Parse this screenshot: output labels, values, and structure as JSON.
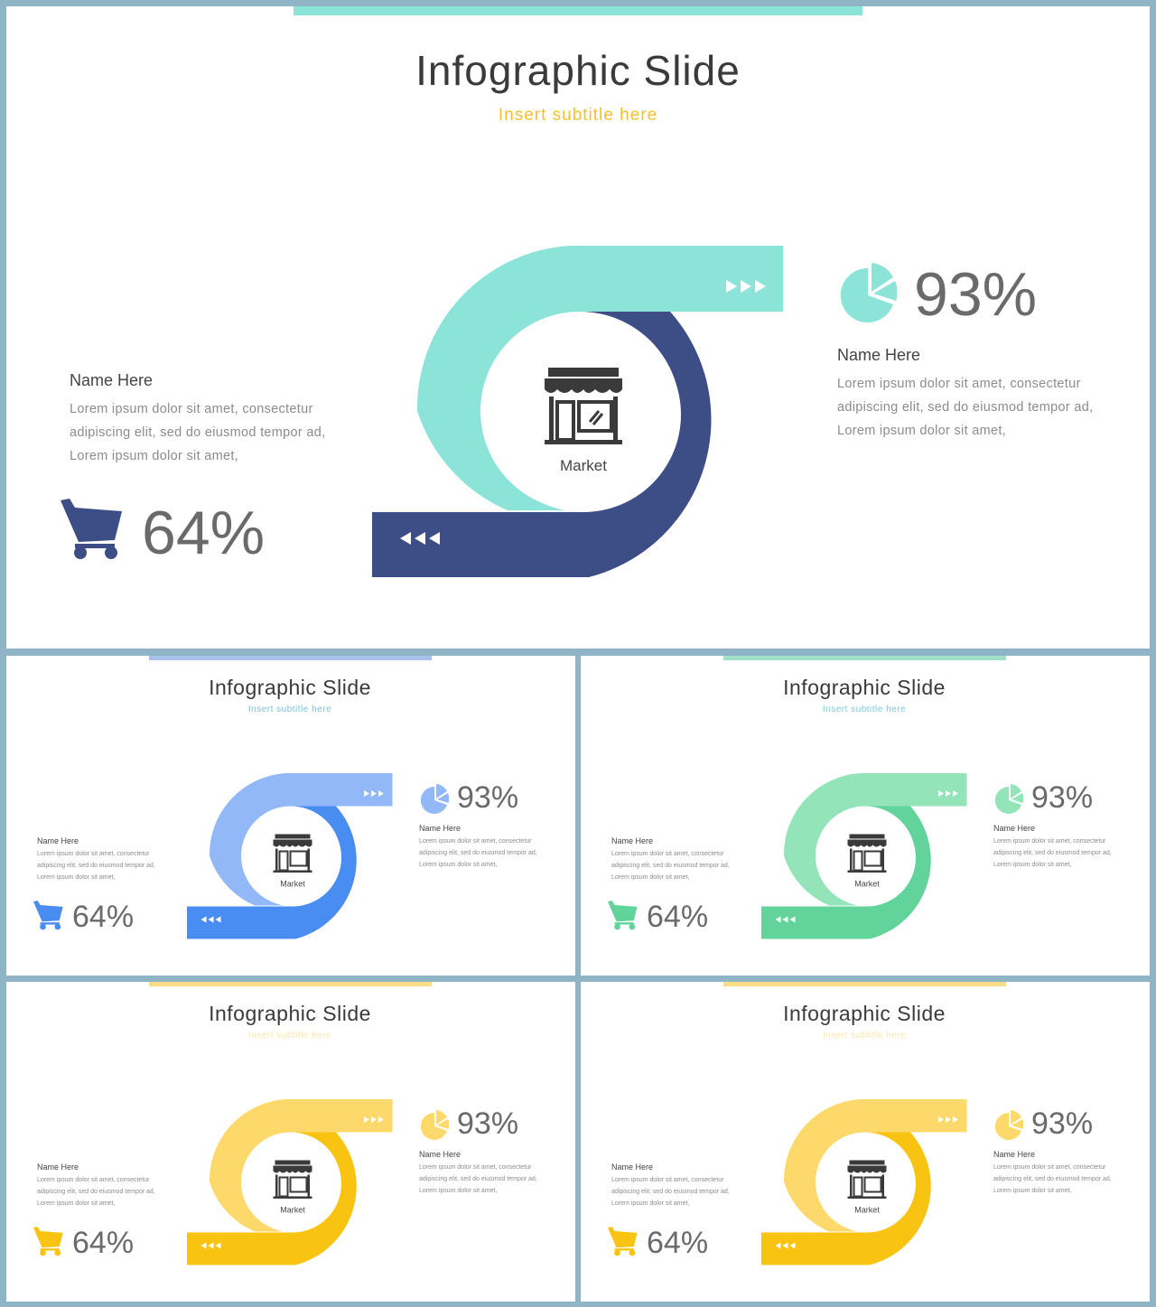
{
  "main": {
    "title": "Infographic Slide",
    "subtitle": "Insert  subtitle  here",
    "left_name": "Name  Here",
    "left_desc": "Lorem  ipsum  dolor  sit amet,  consectetur adipiscing  elit,  sed do eiusmod  tempor ad,  Lorem  ipsum  dolor  sit amet,",
    "left_percent": "64%",
    "right_name": "Name  Here",
    "right_desc": "Lorem  ipsum  dolor  sit amet,  consectetur adipiscing  elit,  sed do eiusmod  tempor ad,  Lorem  ipsum  dolor  sit amet,",
    "right_percent": "93%",
    "center_label": "Market",
    "colors": {
      "light": "#8ce4d9",
      "dark": "#3d4d85",
      "bar": "#8ce4d9",
      "subtitle": "#f3c12d"
    }
  },
  "thumbnails": [
    {
      "title": "Infographic Slide",
      "subtitle": "Insert  subtitle  here",
      "left_name": "Name  Here",
      "left_desc": "Lorem  ipsum  dolor  sit amet,  consectetur adipiscing  elit,  sed do eiusmod  tempor ad,  Lorem  ipsum  dolor  sit amet,",
      "left_percent": "64%",
      "right_name": "Name  Here",
      "right_desc": "Lorem  ipsum  dolor  sit amet,  consectetur adipiscing  elit,  sed do eiusmod  tempor ad,  Lorem  ipsum  dolor  sit amet,",
      "right_percent": "93%",
      "center_label": "Market",
      "colors": {
        "light": "#92b8f7",
        "dark": "#4a8df2",
        "bar": "#a6c2ea",
        "subtitle": "#7ec0d8"
      }
    },
    {
      "title": "Infographic Slide",
      "subtitle": "Insert  subtitle  here",
      "left_name": "Name  Here",
      "left_desc": "Lorem  ipsum  dolor  sit amet,  consectetur adipiscing  elit,  sed do eiusmod  tempor ad,  Lorem  ipsum  dolor  sit amet,",
      "left_percent": "64%",
      "right_name": "Name  Here",
      "right_desc": "Lorem  ipsum  dolor  sit amet,  consectetur adipiscing  elit,  sed do eiusmod  tempor ad,  Lorem  ipsum  dolor  sit amet,",
      "right_percent": "93%",
      "center_label": "Market",
      "colors": {
        "light": "#93e5b9",
        "dark": "#62d49b",
        "bar": "#9fe0c6",
        "subtitle": "#7ec9d8"
      }
    },
    {
      "title": "Infographic Slide",
      "subtitle": "Insert  subtitle  here",
      "left_name": "Name  Here",
      "left_desc": "Lorem  ipsum  dolor  sit amet,  consectetur adipiscing  elit,  sed do eiusmod  tempor ad,  Lorem  ipsum  dolor  sit amet,",
      "left_percent": "64%",
      "right_name": "Name  Here",
      "right_desc": "Lorem  ipsum  dolor  sit amet,  consectetur adipiscing  elit,  sed do eiusmod  tempor ad,  Lorem  ipsum  dolor  sit amet,",
      "right_percent": "93%",
      "center_label": "Market",
      "colors": {
        "light": "#fcd96a",
        "dark": "#f9c311",
        "bar": "#f9dc88",
        "subtitle": "#f9e6a8"
      }
    },
    {
      "title": "Infographic Slide",
      "subtitle": "Insert  subtitle  here",
      "left_name": "Name  Here",
      "left_desc": "Lorem  ipsum  dolor  sit amet,  consectetur adipiscing  elit,  sed do eiusmod  tempor ad,  Lorem  ipsum  dolor  sit amet,",
      "left_percent": "64%",
      "right_name": "Name  Here",
      "right_desc": "Lorem  ipsum  dolor  sit amet,  consectetur adipiscing  elit,  sed do eiusmod  tempor ad,  Lorem  ipsum  dolor  sit amet,",
      "right_percent": "93%",
      "center_label": "Market",
      "colors": {
        "light": "#fcd96a",
        "dark": "#f9c311",
        "bar": "#f9dc88",
        "subtitle": "#f9e6a8"
      }
    }
  ],
  "icons": {
    "shop": "storefront-icon",
    "cart": "shopping-cart-icon",
    "pie": "pie-chart-icon",
    "arrows_right": "triple-arrow-right-icon",
    "arrows_left": "triple-arrow-left-icon"
  }
}
